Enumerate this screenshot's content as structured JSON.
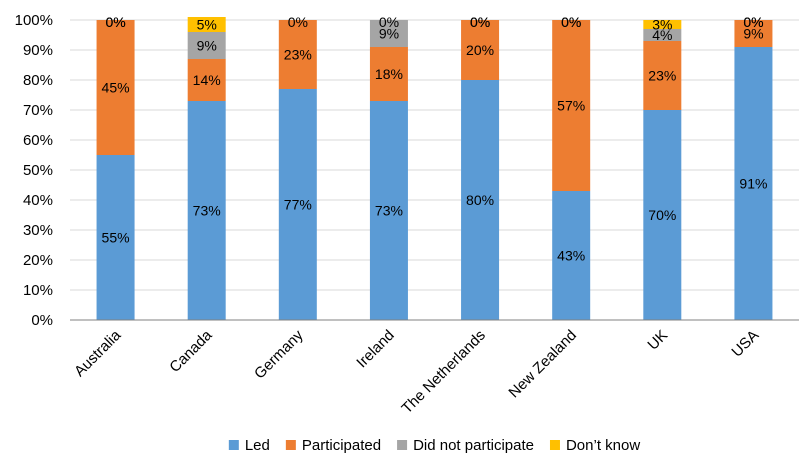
{
  "chart_data": {
    "type": "bar",
    "stacked": true,
    "title": "",
    "xlabel": "",
    "ylabel": "",
    "ylim": [
      0,
      100
    ],
    "yticks": [
      "0%",
      "10%",
      "20%",
      "30%",
      "40%",
      "50%",
      "60%",
      "70%",
      "80%",
      "90%",
      "100%"
    ],
    "legend_position": "bottom",
    "categories": [
      "Australia",
      "Canada",
      "Germany",
      "Ireland",
      "The Netherlands",
      "New Zealand",
      "UK",
      "USA"
    ],
    "series": [
      {
        "name": "Led",
        "color": "#5b9bd5",
        "values": [
          55,
          73,
          77,
          73,
          80,
          43,
          70,
          91
        ],
        "labels": [
          "55%",
          "73%",
          "77%",
          "73%",
          "80%",
          "43%",
          "70%",
          "91%"
        ]
      },
      {
        "name": "Participated",
        "color": "#ed7d31",
        "values": [
          45,
          14,
          23,
          18,
          20,
          57,
          23,
          9
        ],
        "labels": [
          "45%",
          "14%",
          "23%",
          "18%",
          "20%",
          "57%",
          "23%",
          "9%"
        ]
      },
      {
        "name": "Did not participate",
        "color": "#a5a5a5",
        "values": [
          0,
          9,
          0,
          9,
          0,
          0,
          4,
          0
        ],
        "labels": [
          "0%",
          "9%",
          "",
          "9%",
          "0%",
          "0%",
          "4%",
          "0%"
        ]
      },
      {
        "name": "Don’t know",
        "color": "#ffc000",
        "values": [
          0,
          5,
          0,
          0,
          0,
          0,
          3,
          0
        ],
        "labels": [
          "0%",
          "5%",
          "0%",
          "0%",
          "0%",
          "0%",
          "3%",
          "0%"
        ]
      }
    ]
  }
}
